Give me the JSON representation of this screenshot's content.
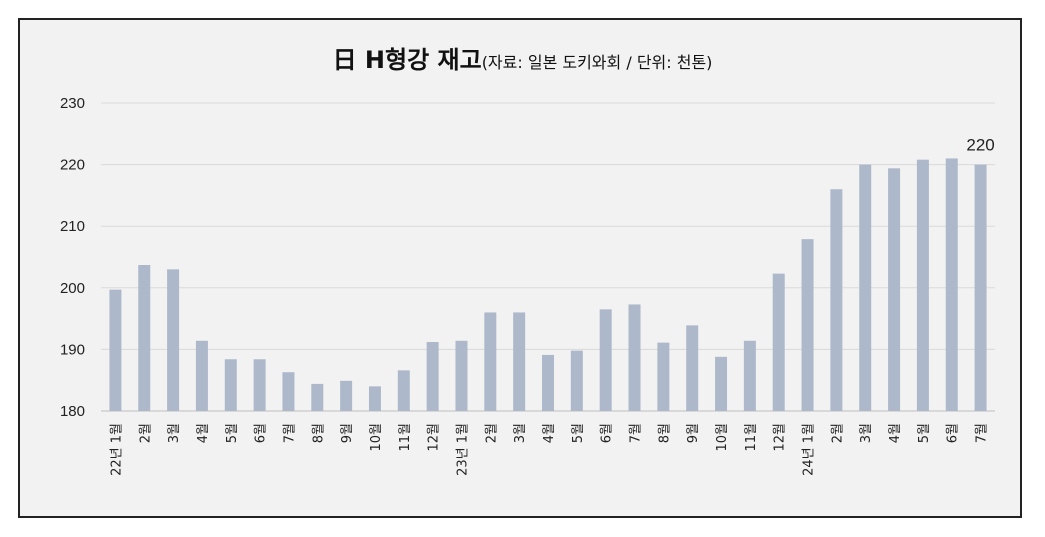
{
  "chart_data": {
    "type": "bar",
    "title": "日 H형강 재고",
    "subtitle": "(자료: 일본 도키와회 / 단위: 천톤)",
    "xlabel": "",
    "ylabel": "",
    "ylim": [
      180,
      230
    ],
    "yticks": [
      180,
      190,
      200,
      210,
      220,
      230
    ],
    "grid": true,
    "legend": "none",
    "bar_color": "#adb9ca",
    "categories": [
      "22년 1월",
      "2월",
      "3월",
      "4월",
      "5월",
      "6월",
      "7월",
      "8월",
      "9월",
      "10월",
      "11월",
      "12월",
      "23년 1월",
      "2월",
      "3월",
      "4월",
      "5월",
      "6월",
      "7월",
      "8월",
      "9월",
      "10월",
      "11월",
      "12월",
      "24년 1월",
      "2월",
      "3월",
      "4월",
      "5월",
      "6월",
      "7월"
    ],
    "values": [
      199.7,
      203.7,
      203.0,
      191.4,
      188.4,
      188.4,
      186.3,
      184.4,
      184.9,
      184.0,
      186.6,
      191.2,
      191.4,
      196.0,
      196.0,
      189.1,
      189.8,
      196.5,
      197.3,
      191.1,
      193.9,
      188.8,
      191.4,
      202.3,
      207.9,
      216.0,
      220.0,
      219.4,
      220.8,
      221.0,
      220.0
    ],
    "data_labels": [
      {
        "index": 30,
        "text": "220"
      }
    ]
  }
}
